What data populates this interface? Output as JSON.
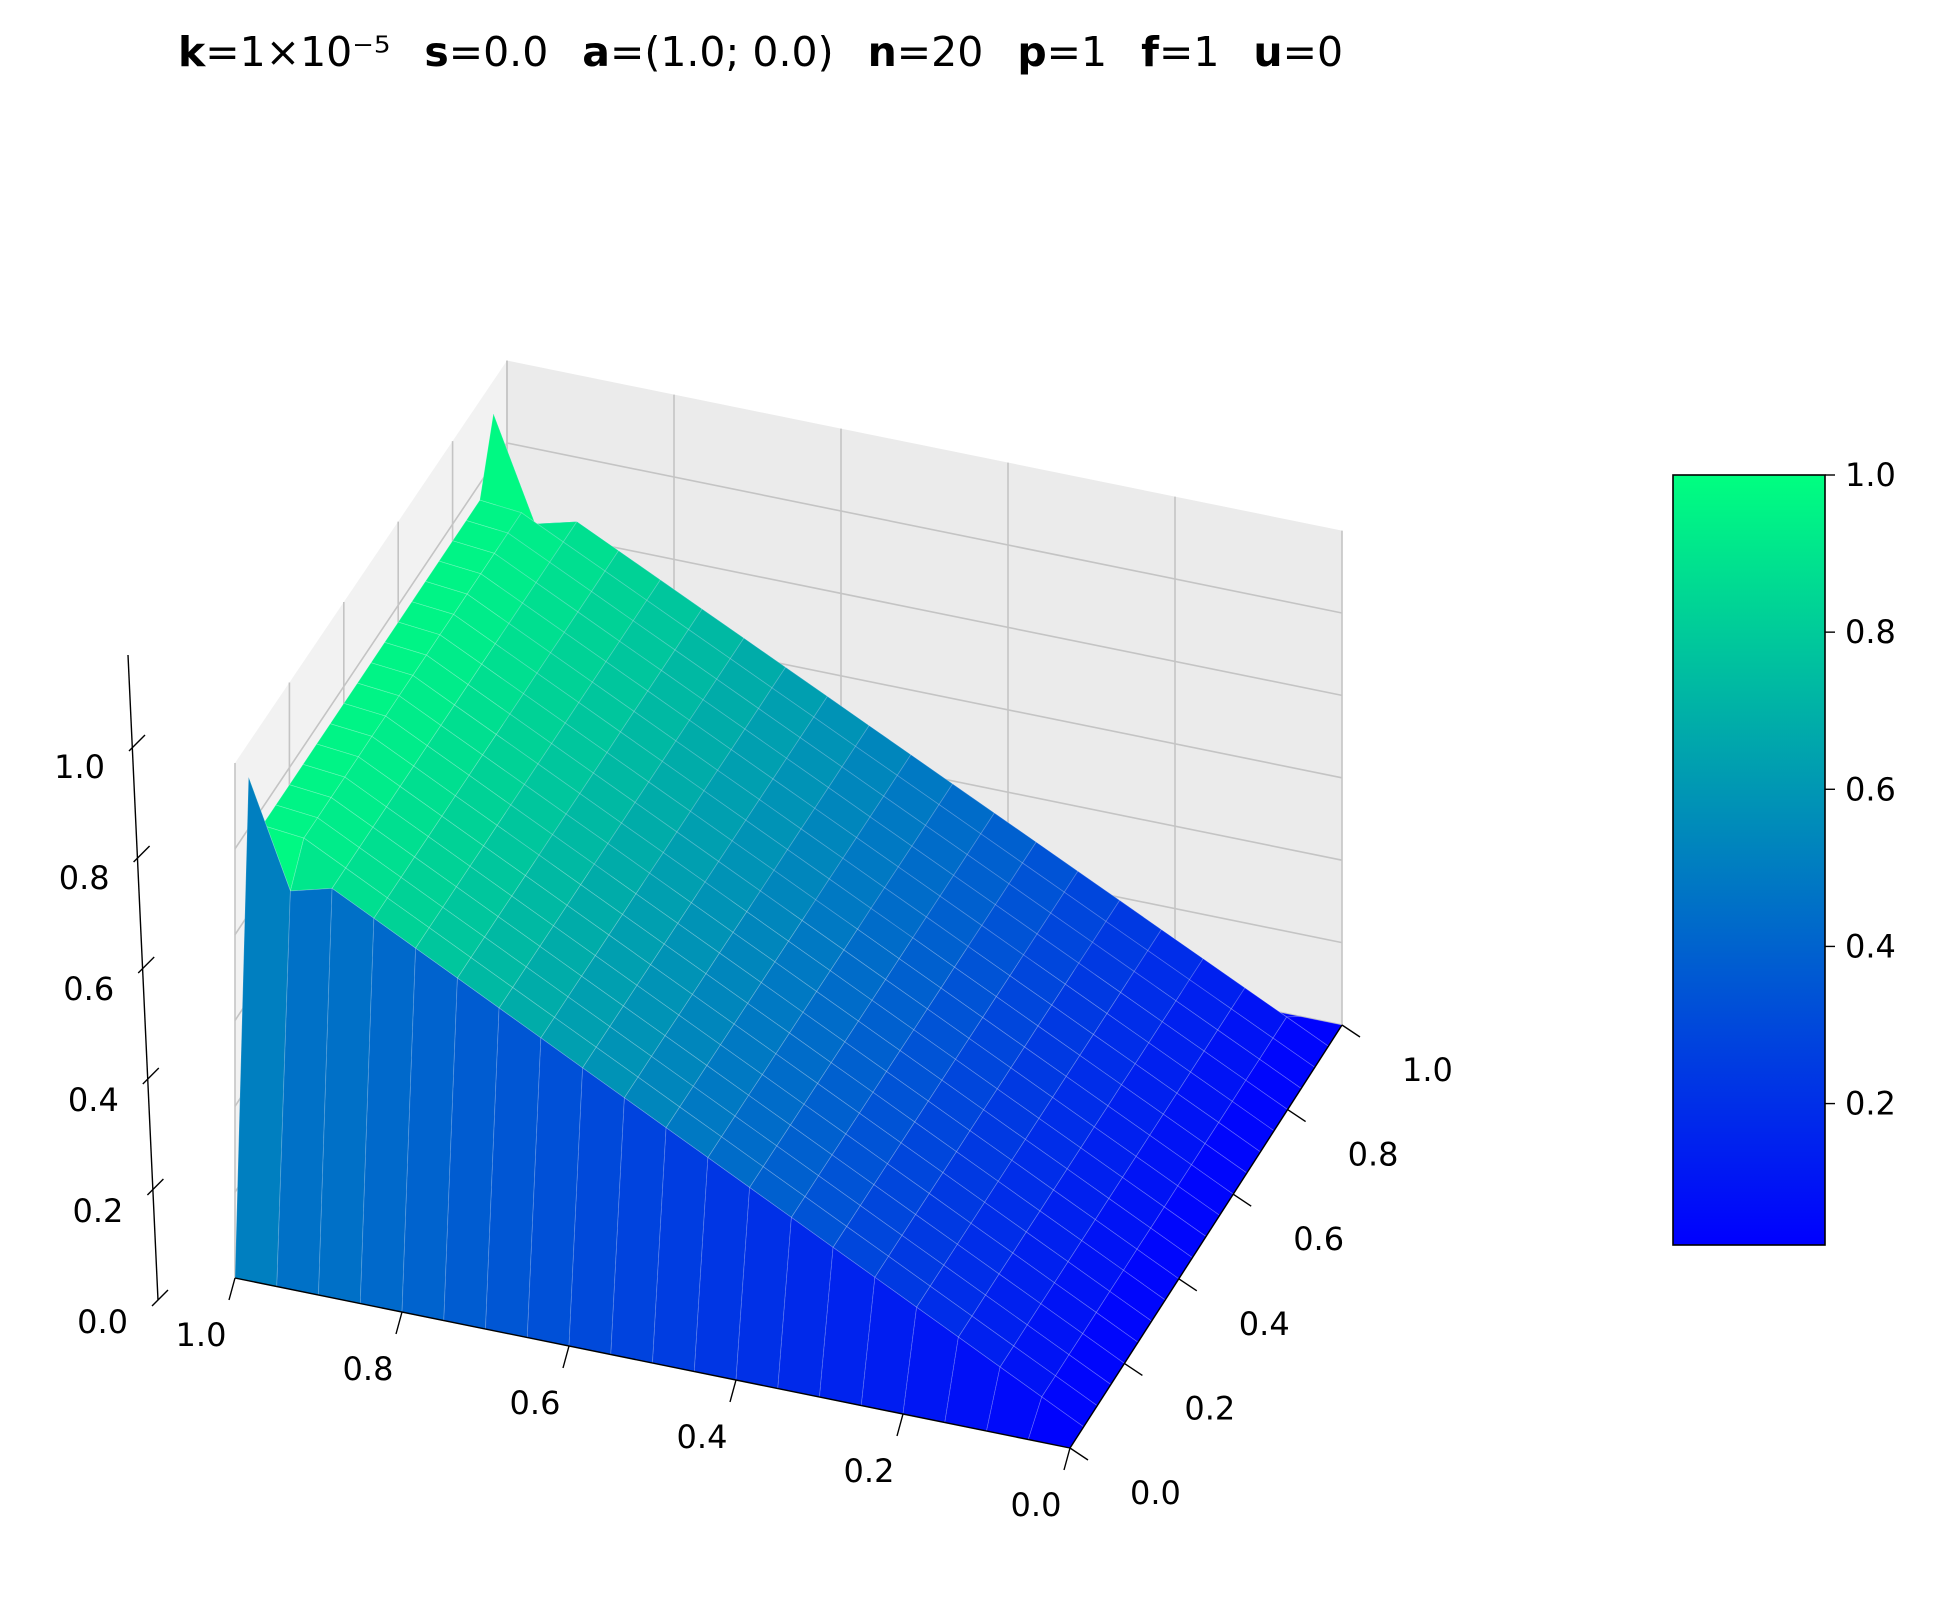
{
  "title_parts": [
    {
      "name": "k",
      "value": "=1×10⁻⁵"
    },
    {
      "name": "s",
      "value": "=0.0"
    },
    {
      "name": "a",
      "value": "=(1.0; 0.0)"
    },
    {
      "name": "n",
      "value": "=20"
    },
    {
      "name": "p",
      "value": "=1"
    },
    {
      "name": "f",
      "value": "=1"
    },
    {
      "name": "u",
      "value": "=0"
    }
  ],
  "chart_data": {
    "type": "surface3d",
    "colormap": "winter",
    "colormap_colors": [
      "#0000ff",
      "#00ff80"
    ],
    "grid_n": 20,
    "x_ticks": [
      "0.0",
      "0.2",
      "0.4",
      "0.6",
      "0.8",
      "1.0"
    ],
    "y_ticks": [
      "0.0",
      "0.2",
      "0.4",
      "0.6",
      "0.8",
      "1.0"
    ],
    "z_ticks": [
      "0.0",
      "0.2",
      "0.4",
      "0.6",
      "0.8",
      "1.0"
    ],
    "xlim": [
      0,
      1
    ],
    "ylim": [
      0,
      1
    ],
    "zlim": [
      0,
      1.2
    ],
    "colorbar_ticks": [
      "0.2",
      "0.4",
      "0.6",
      "0.8",
      "1.0"
    ],
    "colorbar_range": [
      0.02,
      1.0
    ],
    "surface_description": "u(x,y) rises approximately linearly from 0 at x=0 to 1 at x=1 on the interior, drops to 0 at y=0 and y=1 boundaries, with sharp peaks near the corners x=1,y close to 0 and x=1,y close to 1",
    "profile_x": [
      0.0,
      0.05,
      0.1,
      0.15,
      0.2,
      0.25,
      0.3,
      0.35,
      0.4,
      0.45,
      0.5,
      0.55,
      0.6,
      0.65,
      0.7,
      0.75,
      0.8,
      0.85,
      0.9,
      0.95,
      1.0
    ],
    "profile_interior_u": [
      0.0,
      0.05,
      0.1,
      0.15,
      0.2,
      0.25,
      0.3,
      0.35,
      0.4,
      0.45,
      0.5,
      0.55,
      0.6,
      0.65,
      0.7,
      0.75,
      0.8,
      0.85,
      0.9,
      0.95,
      0.98
    ],
    "corner_peak_u": 1.12
  }
}
